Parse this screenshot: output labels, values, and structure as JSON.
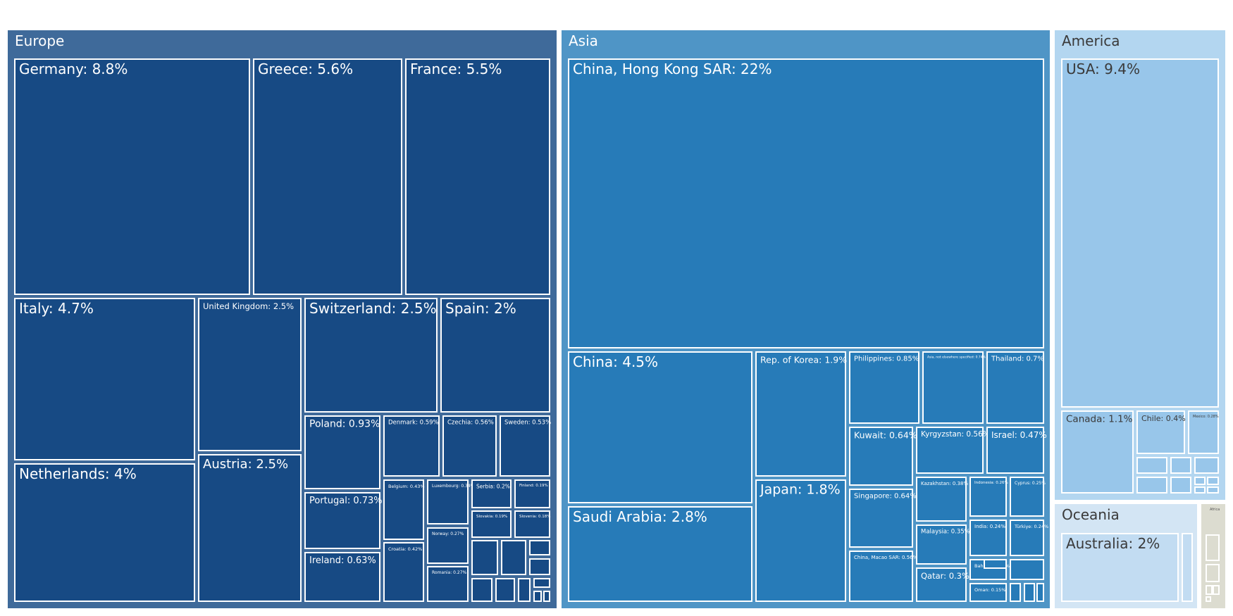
{
  "chart_data": {
    "type": "treemap",
    "colors": {
      "Europe": "#3f6a9a",
      "Europe_tile": "#174a84",
      "Asia": "#4f95c6",
      "Asia_tile": "#277bb8",
      "America": "#b3d6f0",
      "America_tile": "#98c6ea",
      "Oceania": "#d3e5f4",
      "Oceania_tile": "#c2dcf2",
      "Africa": "#dcdcd0",
      "Africa_tile": "#dcdcd0",
      "border": "#ffffff"
    },
    "groups": [
      {
        "name": "Europe",
        "items": [
          {
            "label": "Germany: 8.8%",
            "value": 8.8
          },
          {
            "label": "Greece: 5.6%",
            "value": 5.6
          },
          {
            "label": "France: 5.5%",
            "value": 5.5
          },
          {
            "label": "Italy: 4.7%",
            "value": 4.7
          },
          {
            "label": "United Kingdom: 2.5%",
            "value": 2.5
          },
          {
            "label": "Switzerland: 2.5%",
            "value": 2.5
          },
          {
            "label": "Spain: 2%",
            "value": 2.0
          },
          {
            "label": "Netherlands: 4%",
            "value": 4.0
          },
          {
            "label": "Austria: 2.5%",
            "value": 2.5
          },
          {
            "label": "Poland: 0.93%",
            "value": 0.93
          },
          {
            "label": "Denmark: 0.59%",
            "value": 0.59
          },
          {
            "label": "Czechia: 0.56%",
            "value": 0.56
          },
          {
            "label": "Sweden: 0.53%",
            "value": 0.53
          },
          {
            "label": "Portugal: 0.73%",
            "value": 0.73
          },
          {
            "label": "Ireland: 0.63%",
            "value": 0.63
          },
          {
            "label": "Belgium: 0.43%",
            "value": 0.43
          },
          {
            "label": "Croatia: 0.42%",
            "value": 0.42
          },
          {
            "label": "Luxembourg: 0.34%",
            "value": 0.34
          },
          {
            "label": "Norway: 0.27%",
            "value": 0.27
          },
          {
            "label": "Romania: 0.27%",
            "value": 0.27
          },
          {
            "label": "Serbia: 0.2%",
            "value": 0.2
          },
          {
            "label": "Finland: 0.19%",
            "value": 0.19
          },
          {
            "label": "Slovakia: 0.19%",
            "value": 0.19
          },
          {
            "label": "Slovenia: 0.18%",
            "value": 0.18
          }
        ]
      },
      {
        "name": "Asia",
        "items": [
          {
            "label": "China, Hong Kong SAR: 22%",
            "value": 22
          },
          {
            "label": "China: 4.5%",
            "value": 4.5
          },
          {
            "label": "Saudi Arabia: 2.8%",
            "value": 2.8
          },
          {
            "label": "Rep. of Korea: 1.9%",
            "value": 1.9
          },
          {
            "label": "Japan: 1.8%",
            "value": 1.8
          },
          {
            "label": "Philippines: 0.85%",
            "value": 0.85
          },
          {
            "label": "Asia, not elsewhere specified: 0.74%",
            "value": 0.74
          },
          {
            "label": "Thailand: 0.7%",
            "value": 0.7
          },
          {
            "label": "Kuwait: 0.64%",
            "value": 0.64
          },
          {
            "label": "Kyrgyzstan: 0.56%",
            "value": 0.56
          },
          {
            "label": "Israel: 0.47%",
            "value": 0.47
          },
          {
            "label": "Singapore: 0.64%",
            "value": 0.64
          },
          {
            "label": "China, Macao SAR: 0.56%",
            "value": 0.56
          },
          {
            "label": "Kazakhstan: 0.38%",
            "value": 0.38
          },
          {
            "label": "Indonesia: 0.26%",
            "value": 0.26
          },
          {
            "label": "Cyprus: 0.25%",
            "value": 0.25
          },
          {
            "label": "Malaysia: 0.35%",
            "value": 0.35
          },
          {
            "label": "India: 0.24%",
            "value": 0.24
          },
          {
            "label": "Türkiye: 0.24%",
            "value": 0.24
          },
          {
            "label": "Qatar: 0.3%",
            "value": 0.3
          },
          {
            "label": "Bahrain: 0.15%",
            "value": 0.15
          },
          {
            "label": "Oman: 0.15%",
            "value": 0.15
          }
        ]
      },
      {
        "name": "America",
        "items": [
          {
            "label": "USA: 9.4%",
            "value": 9.4
          },
          {
            "label": "Canada: 1.1%",
            "value": 1.1
          },
          {
            "label": "Chile: 0.4%",
            "value": 0.4
          },
          {
            "label": "Mexico: 0.28%",
            "value": 0.28
          }
        ]
      },
      {
        "name": "Oceania",
        "items": [
          {
            "label": "Australia: 2%",
            "value": 2.0
          }
        ]
      },
      {
        "name": "Africa",
        "items": []
      }
    ]
  }
}
